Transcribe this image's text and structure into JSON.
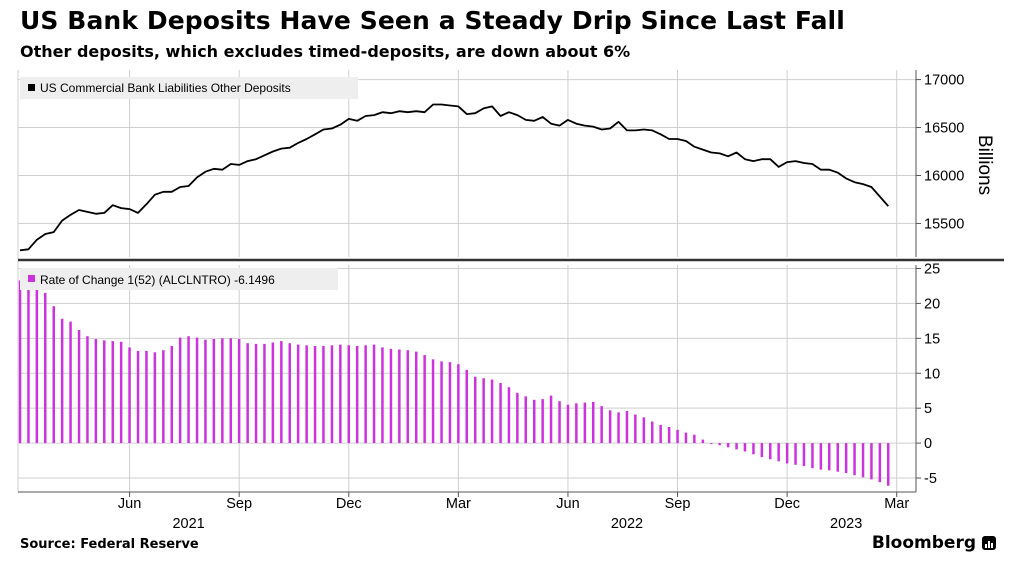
{
  "header": {
    "title": "US Bank Deposits Have Seen a Steady Drip Since Last Fall",
    "subtitle": "Other deposits, which excludes timed-deposits, are down about 6%"
  },
  "footer": {
    "source": "Source: Federal Reserve",
    "brand": "Bloomberg"
  },
  "colors": {
    "line": "#000000",
    "bars": "#cc33dd",
    "grid": "#cfcfcf",
    "legend_bg": "#eeeeee",
    "divider": "#333333"
  },
  "chart_data": [
    {
      "type": "line",
      "legend": "US Commercial Bank Liabilities Other Deposits",
      "ylabel": "Billions",
      "ylim": [
        15150,
        17100
      ],
      "yticks": [
        15500,
        16000,
        16500,
        17000
      ],
      "grid": true,
      "legend_position": "top-left",
      "x_months": {
        "labels": [
          "Jun",
          "Sep",
          "Dec",
          "Mar",
          "Jun",
          "Sep",
          "Dec",
          "Mar"
        ],
        "years": [
          "2021",
          "2022",
          "2023"
        ]
      },
      "start": "2021-03-01",
      "values": [
        15220,
        15230,
        15330,
        15390,
        15410,
        15530,
        15590,
        15640,
        15620,
        15600,
        15610,
        15690,
        15660,
        15650,
        15610,
        15700,
        15800,
        15830,
        15830,
        15880,
        15890,
        15980,
        16040,
        16070,
        16060,
        16120,
        16110,
        16150,
        16170,
        16210,
        16250,
        16280,
        16290,
        16340,
        16380,
        16430,
        16480,
        16490,
        16530,
        16590,
        16570,
        16620,
        16630,
        16660,
        16650,
        16670,
        16660,
        16670,
        16660,
        16740,
        16740,
        16730,
        16720,
        16640,
        16650,
        16700,
        16720,
        16620,
        16660,
        16630,
        16580,
        16570,
        16610,
        16540,
        16520,
        16580,
        16540,
        16520,
        16510,
        16480,
        16490,
        16560,
        16470,
        16470,
        16480,
        16470,
        16430,
        16380,
        16380,
        16360,
        16300,
        16270,
        16240,
        16230,
        16200,
        16240,
        16170,
        16150,
        16170,
        16170,
        16090,
        16140,
        16150,
        16130,
        16120,
        16060,
        16060,
        16030,
        15970,
        15930,
        15910,
        15880,
        15780,
        15680
      ]
    },
    {
      "type": "bar",
      "legend": "Rate of Change 1(52) (ALCLNTRO) -6.1496",
      "ylim": [
        -7,
        25.5
      ],
      "yticks": [
        -5,
        0,
        5,
        10,
        15,
        20,
        25
      ],
      "grid": true,
      "legend_position": "top-left",
      "x_months": {
        "labels": [
          "Jun",
          "Sep",
          "Dec",
          "Mar",
          "Jun",
          "Sep",
          "Dec",
          "Mar"
        ],
        "years": [
          "2021",
          "2022",
          "2023"
        ]
      },
      "start": "2021-03-01",
      "values": [
        23.3,
        22.5,
        23.0,
        21.5,
        19.6,
        17.8,
        17.4,
        16.2,
        15.3,
        14.9,
        14.7,
        14.6,
        14.5,
        13.7,
        13.2,
        13.2,
        13.0,
        13.3,
        13.9,
        15.1,
        15.3,
        15.1,
        14.8,
        14.9,
        15.0,
        15.0,
        14.9,
        14.3,
        14.2,
        14.2,
        14.4,
        14.6,
        14.3,
        14.1,
        14.0,
        13.9,
        13.9,
        14.0,
        14.1,
        14.0,
        13.9,
        14.0,
        14.1,
        13.7,
        13.5,
        13.4,
        13.3,
        13.1,
        12.6,
        12.0,
        11.7,
        11.6,
        11.3,
        10.5,
        9.5,
        9.3,
        9.1,
        8.6,
        8.0,
        7.2,
        6.7,
        6.2,
        6.3,
        6.8,
        6.0,
        5.5,
        5.7,
        5.8,
        5.9,
        5.3,
        4.7,
        4.4,
        4.6,
        4.1,
        3.7,
        3.1,
        2.6,
        2.3,
        1.9,
        1.5,
        1.2,
        0.5,
        0.0,
        -0.3,
        -0.6,
        -0.9,
        -1.2,
        -1.6,
        -2.0,
        -2.3,
        -2.6,
        -2.9,
        -3.1,
        -3.3,
        -3.6,
        -3.8,
        -3.9,
        -4.1,
        -4.3,
        -4.6,
        -4.9,
        -5.2,
        -5.6,
        -6.1
      ]
    }
  ]
}
